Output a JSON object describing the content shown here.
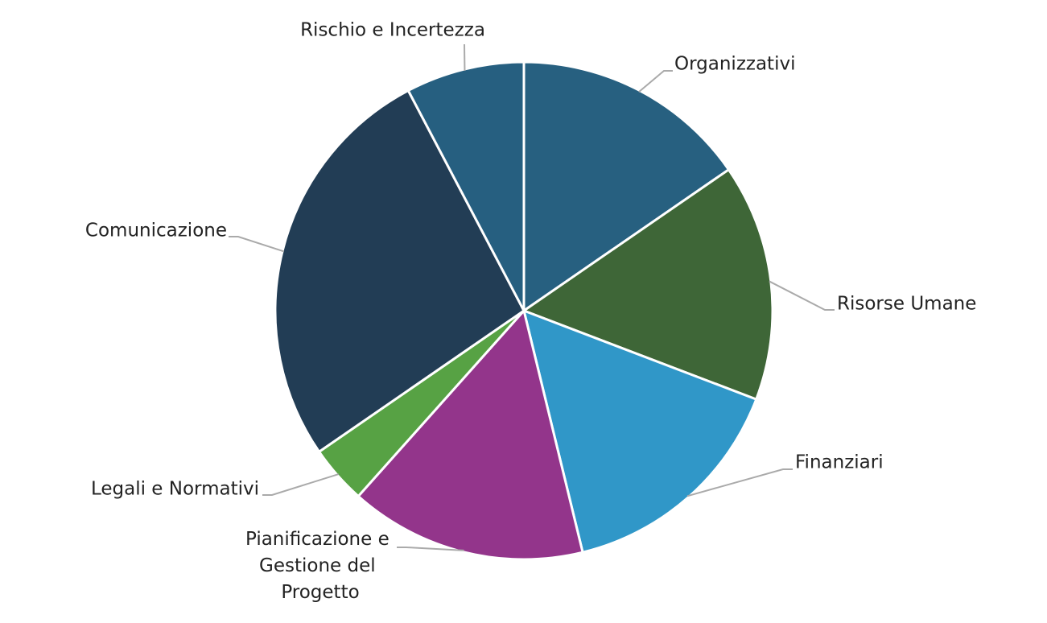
{
  "chart_data": {
    "type": "pie",
    "categories": [
      "Organizzativi",
      "Risorse Umane",
      "Finanziari",
      "Pianificazione e Gestione del Progetto",
      "Legali e Normativi",
      "Comunicazione",
      "Rischio e Incertezza"
    ],
    "values": [
      15.4,
      15.4,
      15.4,
      15.4,
      3.8,
      26.9,
      7.7
    ],
    "colors": [
      "#276080",
      "#3e6637",
      "#3097c8",
      "#93358b",
      "#57a244",
      "#223d55",
      "#265f80"
    ]
  }
}
